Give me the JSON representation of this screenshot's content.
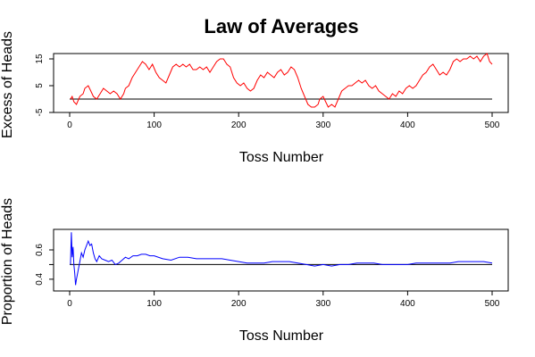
{
  "chart_data": [
    {
      "type": "line",
      "title": "Law of Averages",
      "xlabel": "Toss Number",
      "ylabel": "Excess of Heads",
      "xlim": [
        0,
        500
      ],
      "ylim": [
        -5,
        17
      ],
      "xticks": [
        0,
        100,
        200,
        300,
        400,
        500
      ],
      "yticks": [
        -5,
        5,
        15
      ],
      "reference_line": 0,
      "grid": false,
      "series": [
        {
          "color": "#ff0000",
          "points": [
            [
              1,
              0
            ],
            [
              3,
              1
            ],
            [
              5,
              -1
            ],
            [
              8,
              -2
            ],
            [
              12,
              1
            ],
            [
              16,
              2
            ],
            [
              18,
              4
            ],
            [
              22,
              5
            ],
            [
              25,
              3
            ],
            [
              28,
              1
            ],
            [
              32,
              0
            ],
            [
              36,
              2
            ],
            [
              40,
              4
            ],
            [
              44,
              3
            ],
            [
              48,
              2
            ],
            [
              52,
              3
            ],
            [
              56,
              2
            ],
            [
              60,
              0
            ],
            [
              64,
              2
            ],
            [
              66,
              4
            ],
            [
              70,
              5
            ],
            [
              74,
              8
            ],
            [
              78,
              10
            ],
            [
              82,
              12
            ],
            [
              86,
              14
            ],
            [
              90,
              13
            ],
            [
              94,
              11
            ],
            [
              98,
              13
            ],
            [
              102,
              10
            ],
            [
              106,
              8
            ],
            [
              110,
              7
            ],
            [
              114,
              6
            ],
            [
              118,
              9
            ],
            [
              122,
              12
            ],
            [
              126,
              13
            ],
            [
              130,
              12
            ],
            [
              134,
              13
            ],
            [
              138,
              12
            ],
            [
              142,
              13
            ],
            [
              146,
              11
            ],
            [
              150,
              11
            ],
            [
              154,
              12
            ],
            [
              158,
              11
            ],
            [
              162,
              12
            ],
            [
              166,
              10
            ],
            [
              170,
              12
            ],
            [
              174,
              14
            ],
            [
              178,
              15
            ],
            [
              182,
              15
            ],
            [
              186,
              13
            ],
            [
              190,
              12
            ],
            [
              194,
              8
            ],
            [
              198,
              6
            ],
            [
              202,
              5
            ],
            [
              206,
              6
            ],
            [
              210,
              4
            ],
            [
              214,
              3
            ],
            [
              218,
              4
            ],
            [
              222,
              7
            ],
            [
              226,
              9
            ],
            [
              230,
              8
            ],
            [
              234,
              10
            ],
            [
              238,
              9
            ],
            [
              242,
              8
            ],
            [
              246,
              10
            ],
            [
              250,
              11
            ],
            [
              254,
              9
            ],
            [
              258,
              10
            ],
            [
              262,
              12
            ],
            [
              266,
              11
            ],
            [
              270,
              8
            ],
            [
              274,
              4
            ],
            [
              278,
              1
            ],
            [
              282,
              -2
            ],
            [
              286,
              -3
            ],
            [
              290,
              -3
            ],
            [
              294,
              -2
            ],
            [
              296,
              0
            ],
            [
              300,
              1
            ],
            [
              303,
              -1
            ],
            [
              306,
              -3
            ],
            [
              310,
              -2
            ],
            [
              314,
              -3
            ],
            [
              318,
              0
            ],
            [
              322,
              3
            ],
            [
              326,
              4
            ],
            [
              330,
              5
            ],
            [
              334,
              5
            ],
            [
              338,
              6
            ],
            [
              342,
              7
            ],
            [
              346,
              6
            ],
            [
              350,
              7
            ],
            [
              354,
              5
            ],
            [
              358,
              4
            ],
            [
              362,
              5
            ],
            [
              366,
              3
            ],
            [
              370,
              2
            ],
            [
              374,
              1
            ],
            [
              378,
              0
            ],
            [
              382,
              2
            ],
            [
              386,
              1
            ],
            [
              390,
              3
            ],
            [
              394,
              2
            ],
            [
              398,
              4
            ],
            [
              402,
              5
            ],
            [
              406,
              4
            ],
            [
              410,
              5
            ],
            [
              414,
              7
            ],
            [
              418,
              9
            ],
            [
              422,
              10
            ],
            [
              426,
              12
            ],
            [
              430,
              13
            ],
            [
              434,
              11
            ],
            [
              438,
              9
            ],
            [
              442,
              10
            ],
            [
              446,
              9
            ],
            [
              450,
              11
            ],
            [
              454,
              14
            ],
            [
              458,
              15
            ],
            [
              462,
              14
            ],
            [
              466,
              15
            ],
            [
              470,
              15
            ],
            [
              474,
              16
            ],
            [
              478,
              15
            ],
            [
              482,
              16
            ],
            [
              486,
              14
            ],
            [
              490,
              16
            ],
            [
              494,
              17
            ],
            [
              497,
              14
            ],
            [
              500,
              13
            ]
          ]
        }
      ],
      "x_label_text": "Toss Number"
    },
    {
      "type": "line",
      "xlabel": "Toss Number",
      "ylabel": "Proportion of Heads",
      "xlim": [
        0,
        500
      ],
      "ylim": [
        0.32,
        0.74
      ],
      "xticks": [
        0,
        100,
        200,
        300,
        400,
        500
      ],
      "yticks": [
        0.4,
        0.5,
        0.6
      ],
      "ytick_labels": [
        "0.4",
        "",
        "0.6"
      ],
      "reference_line": 0.5,
      "grid": false,
      "series": [
        {
          "color": "#0000ff",
          "points": [
            [
              1,
              0.5
            ],
            [
              2,
              0.72
            ],
            [
              3,
              0.55
            ],
            [
              4,
              0.62
            ],
            [
              5,
              0.5
            ],
            [
              6,
              0.44
            ],
            [
              7,
              0.36
            ],
            [
              8,
              0.4
            ],
            [
              10,
              0.46
            ],
            [
              12,
              0.52
            ],
            [
              14,
              0.58
            ],
            [
              16,
              0.55
            ],
            [
              18,
              0.6
            ],
            [
              20,
              0.63
            ],
            [
              22,
              0.66
            ],
            [
              24,
              0.63
            ],
            [
              26,
              0.64
            ],
            [
              28,
              0.58
            ],
            [
              30,
              0.54
            ],
            [
              32,
              0.52
            ],
            [
              35,
              0.56
            ],
            [
              38,
              0.54
            ],
            [
              42,
              0.53
            ],
            [
              46,
              0.52
            ],
            [
              50,
              0.53
            ],
            [
              54,
              0.5
            ],
            [
              58,
              0.51
            ],
            [
              62,
              0.53
            ],
            [
              66,
              0.55
            ],
            [
              70,
              0.54
            ],
            [
              75,
              0.56
            ],
            [
              80,
              0.56
            ],
            [
              85,
              0.57
            ],
            [
              90,
              0.57
            ],
            [
              95,
              0.56
            ],
            [
              100,
              0.56
            ],
            [
              110,
              0.54
            ],
            [
              120,
              0.53
            ],
            [
              130,
              0.55
            ],
            [
              140,
              0.55
            ],
            [
              150,
              0.54
            ],
            [
              160,
              0.54
            ],
            [
              170,
              0.54
            ],
            [
              180,
              0.54
            ],
            [
              190,
              0.53
            ],
            [
              200,
              0.52
            ],
            [
              210,
              0.51
            ],
            [
              220,
              0.51
            ],
            [
              230,
              0.51
            ],
            [
              240,
              0.52
            ],
            [
              250,
              0.52
            ],
            [
              260,
              0.52
            ],
            [
              270,
              0.51
            ],
            [
              280,
              0.5
            ],
            [
              290,
              0.49
            ],
            [
              300,
              0.5
            ],
            [
              310,
              0.49
            ],
            [
              320,
              0.5
            ],
            [
              330,
              0.5
            ],
            [
              340,
              0.51
            ],
            [
              350,
              0.51
            ],
            [
              360,
              0.51
            ],
            [
              370,
              0.5
            ],
            [
              380,
              0.5
            ],
            [
              390,
              0.5
            ],
            [
              400,
              0.5
            ],
            [
              410,
              0.51
            ],
            [
              420,
              0.51
            ],
            [
              430,
              0.51
            ],
            [
              440,
              0.51
            ],
            [
              450,
              0.51
            ],
            [
              460,
              0.52
            ],
            [
              470,
              0.52
            ],
            [
              480,
              0.52
            ],
            [
              490,
              0.52
            ],
            [
              500,
              0.51
            ]
          ]
        }
      ]
    }
  ]
}
